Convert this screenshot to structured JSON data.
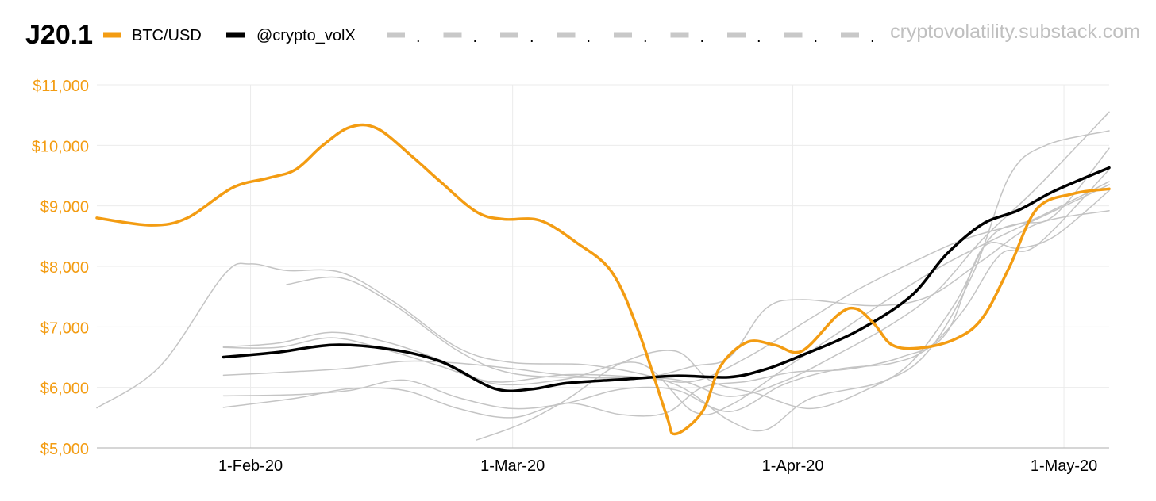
{
  "chart_data": {
    "type": "line",
    "title": "J20.1",
    "watermark": "cryptovolatility.substack.com",
    "legend_position": "top",
    "legend": [
      {
        "label": "BTC/USD",
        "color": "#F39C12",
        "style": "solid"
      },
      {
        "label": "@crypto_volX",
        "color": "#000000",
        "style": "solid"
      },
      {
        "label": ".",
        "color": "#C8C8C8",
        "style": "dashed"
      },
      {
        "label": ".",
        "color": "#C8C8C8",
        "style": "dashed"
      },
      {
        "label": ".",
        "color": "#C8C8C8",
        "style": "dashed"
      },
      {
        "label": ".",
        "color": "#C8C8C8",
        "style": "dashed"
      },
      {
        "label": ".",
        "color": "#C8C8C8",
        "style": "dashed"
      },
      {
        "label": ".",
        "color": "#C8C8C8",
        "style": "dashed"
      },
      {
        "label": ".",
        "color": "#C8C8C8",
        "style": "dashed"
      },
      {
        "label": ".",
        "color": "#C8C8C8",
        "style": "dashed"
      },
      {
        "label": ".",
        "color": "#C8C8C8",
        "style": "dashed"
      }
    ],
    "x_range": [
      0,
      112
    ],
    "x_ticks": [
      {
        "x": 17,
        "label": "1-Feb-20"
      },
      {
        "x": 46,
        "label": "1-Mar-20"
      },
      {
        "x": 77,
        "label": "1-Apr-20"
      },
      {
        "x": 107,
        "label": "1-May-20"
      }
    ],
    "ylim": [
      5000,
      11000
    ],
    "y_ticks": [
      {
        "v": 5000,
        "label": "$5,000"
      },
      {
        "v": 6000,
        "label": "$6,000"
      },
      {
        "v": 7000,
        "label": "$7,000"
      },
      {
        "v": 8000,
        "label": "$8,000"
      },
      {
        "v": 9000,
        "label": "$9,000"
      },
      {
        "v": 10000,
        "label": "$10,000"
      },
      {
        "v": 11000,
        "label": "$11,000"
      }
    ],
    "axis_color": "#F39C12",
    "grid": true,
    "series": [
      {
        "name": "gray-1",
        "color": "#C4C4C4",
        "width": 1.5,
        "points": [
          [
            0,
            5660
          ],
          [
            7,
            6350
          ],
          [
            14,
            7850
          ],
          [
            17,
            8040
          ],
          [
            21,
            7930
          ],
          [
            27,
            7900
          ],
          [
            33,
            7400
          ],
          [
            40,
            6650
          ],
          [
            46,
            6410
          ],
          [
            55,
            6360
          ],
          [
            64,
            6050
          ],
          [
            70,
            5450
          ],
          [
            74,
            5300
          ],
          [
            79,
            5820
          ],
          [
            87,
            6100
          ],
          [
            92,
            6600
          ],
          [
            97,
            7900
          ],
          [
            101,
            9500
          ],
          [
            105,
            10000
          ],
          [
            112,
            10240
          ]
        ]
      },
      {
        "name": "gray-2",
        "color": "#C4C4C4",
        "width": 1.5,
        "points": [
          [
            21,
            7700
          ],
          [
            27,
            7810
          ],
          [
            33,
            7350
          ],
          [
            40,
            6600
          ],
          [
            46,
            6230
          ],
          [
            55,
            6160
          ],
          [
            64,
            6130
          ],
          [
            70,
            5850
          ],
          [
            76,
            6100
          ],
          [
            82,
            6550
          ],
          [
            88,
            7050
          ],
          [
            93,
            7600
          ],
          [
            98,
            8450
          ],
          [
            104,
            9300
          ],
          [
            112,
            10550
          ]
        ]
      },
      {
        "name": "gray-3",
        "color": "#C4C4C4",
        "width": 1.5,
        "points": [
          [
            14,
            6670
          ],
          [
            20,
            6730
          ],
          [
            26,
            6910
          ],
          [
            32,
            6750
          ],
          [
            38,
            6450
          ],
          [
            44,
            6060
          ],
          [
            52,
            6140
          ],
          [
            60,
            6400
          ],
          [
            66,
            5600
          ],
          [
            70,
            5700
          ],
          [
            76,
            6300
          ],
          [
            82,
            6900
          ],
          [
            88,
            7500
          ],
          [
            94,
            8050
          ],
          [
            100,
            8500
          ],
          [
            105,
            8850
          ],
          [
            112,
            9350
          ]
        ]
      },
      {
        "name": "gray-4",
        "color": "#C4C4C4",
        "width": 1.5,
        "points": [
          [
            14,
            6660
          ],
          [
            20,
            6660
          ],
          [
            26,
            6820
          ],
          [
            32,
            6620
          ],
          [
            38,
            6350
          ],
          [
            44,
            6090
          ],
          [
            52,
            6210
          ],
          [
            60,
            6170
          ],
          [
            66,
            6100
          ],
          [
            72,
            6500
          ],
          [
            78,
            7050
          ],
          [
            84,
            7600
          ],
          [
            90,
            8050
          ],
          [
            96,
            8450
          ],
          [
            102,
            8700
          ],
          [
            106,
            8850
          ],
          [
            112,
            9950
          ]
        ]
      },
      {
        "name": "gray-5",
        "color": "#C4C4C4",
        "width": 1.5,
        "points": [
          [
            14,
            6200
          ],
          [
            22,
            6260
          ],
          [
            28,
            6320
          ],
          [
            34,
            6430
          ],
          [
            40,
            6400
          ],
          [
            46,
            6310
          ],
          [
            52,
            6200
          ],
          [
            60,
            6150
          ],
          [
            66,
            6350
          ],
          [
            70,
            6500
          ],
          [
            74,
            7300
          ],
          [
            78,
            7450
          ],
          [
            86,
            7350
          ],
          [
            92,
            7500
          ],
          [
            98,
            8100
          ],
          [
            104,
            8700
          ],
          [
            112,
            8920
          ]
        ]
      },
      {
        "name": "gray-6",
        "color": "#C4C4C4",
        "width": 1.5,
        "points": [
          [
            14,
            5860
          ],
          [
            22,
            5880
          ],
          [
            28,
            5950
          ],
          [
            34,
            6120
          ],
          [
            40,
            5830
          ],
          [
            46,
            5650
          ],
          [
            52,
            5740
          ],
          [
            58,
            5970
          ],
          [
            64,
            5960
          ],
          [
            70,
            5600
          ],
          [
            76,
            6050
          ],
          [
            82,
            6300
          ],
          [
            88,
            6400
          ],
          [
            92,
            6650
          ],
          [
            96,
            7300
          ],
          [
            100,
            8200
          ],
          [
            104,
            8350
          ],
          [
            112,
            9600
          ]
        ]
      },
      {
        "name": "gray-7",
        "color": "#C4C4C4",
        "width": 1.5,
        "points": [
          [
            14,
            5670
          ],
          [
            22,
            5820
          ],
          [
            28,
            5980
          ],
          [
            34,
            5950
          ],
          [
            40,
            5650
          ],
          [
            46,
            5500
          ],
          [
            52,
            5740
          ],
          [
            58,
            5550
          ],
          [
            63,
            5580
          ],
          [
            67,
            6000
          ],
          [
            72,
            6100
          ],
          [
            77,
            6250
          ],
          [
            83,
            6300
          ],
          [
            89,
            6500
          ],
          [
            94,
            6900
          ],
          [
            98,
            8300
          ],
          [
            102,
            8300
          ],
          [
            106,
            8500
          ],
          [
            112,
            9250
          ]
        ]
      },
      {
        "name": "gray-8",
        "color": "#C4C4C4",
        "width": 1.5,
        "points": [
          [
            42,
            5130
          ],
          [
            47,
            5400
          ],
          [
            52,
            5800
          ],
          [
            58,
            6400
          ],
          [
            64,
            6600
          ],
          [
            68,
            6100
          ],
          [
            73,
            5900
          ],
          [
            79,
            5650
          ],
          [
            85,
            5950
          ],
          [
            90,
            6400
          ],
          [
            95,
            7400
          ],
          [
            99,
            8500
          ],
          [
            104,
            8800
          ],
          [
            112,
            9400
          ]
        ]
      },
      {
        "name": "@crypto_volX",
        "color": "#000000",
        "width": 3.5,
        "points": [
          [
            14,
            6500
          ],
          [
            20,
            6580
          ],
          [
            26,
            6700
          ],
          [
            32,
            6640
          ],
          [
            38,
            6430
          ],
          [
            44,
            5980
          ],
          [
            48,
            5970
          ],
          [
            52,
            6070
          ],
          [
            58,
            6130
          ],
          [
            64,
            6190
          ],
          [
            70,
            6170
          ],
          [
            74,
            6300
          ],
          [
            78,
            6530
          ],
          [
            84,
            6920
          ],
          [
            90,
            7500
          ],
          [
            94,
            8200
          ],
          [
            98,
            8700
          ],
          [
            102,
            8930
          ],
          [
            106,
            9250
          ],
          [
            112,
            9630
          ]
        ]
      },
      {
        "name": "BTC/USD",
        "color": "#F39C12",
        "width": 3.5,
        "points": [
          [
            0,
            8800
          ],
          [
            6,
            8680
          ],
          [
            10,
            8800
          ],
          [
            15,
            9300
          ],
          [
            19,
            9460
          ],
          [
            22,
            9600
          ],
          [
            25,
            10000
          ],
          [
            28,
            10300
          ],
          [
            31,
            10280
          ],
          [
            35,
            9800
          ],
          [
            38,
            9400
          ],
          [
            42,
            8900
          ],
          [
            45,
            8780
          ],
          [
            49,
            8760
          ],
          [
            53,
            8400
          ],
          [
            57,
            7900
          ],
          [
            60,
            6900
          ],
          [
            63,
            5550
          ],
          [
            64,
            5230
          ],
          [
            67,
            5600
          ],
          [
            69,
            6350
          ],
          [
            72,
            6750
          ],
          [
            75,
            6700
          ],
          [
            78,
            6600
          ],
          [
            82,
            7200
          ],
          [
            84,
            7300
          ],
          [
            86,
            7050
          ],
          [
            88,
            6700
          ],
          [
            91,
            6650
          ],
          [
            95,
            6800
          ],
          [
            98,
            7150
          ],
          [
            101,
            8000
          ],
          [
            104,
            8950
          ],
          [
            108,
            9200
          ],
          [
            112,
            9280
          ]
        ]
      }
    ]
  }
}
